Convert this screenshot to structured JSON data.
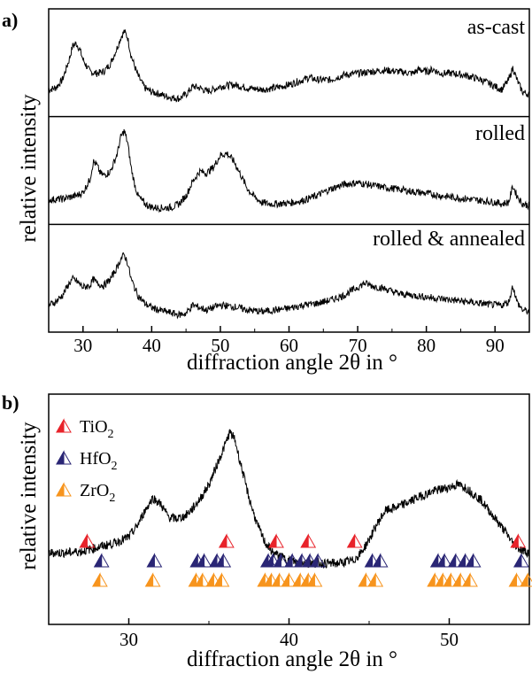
{
  "chart_data": [
    {
      "panel_label": "a)",
      "type": "line",
      "xlabel": "diffraction angle 2θ in °",
      "ylabel": "relative intensity",
      "xlim": [
        25,
        95
      ],
      "xticks": [
        30,
        40,
        50,
        60,
        70,
        80,
        90
      ],
      "stacked_panels": [
        {
          "label": "as-cast",
          "x": [
            25,
            26,
            27,
            28,
            28.5,
            29,
            29.5,
            30,
            31,
            32,
            33,
            34,
            35,
            35.5,
            36,
            36.5,
            37,
            38,
            39,
            40,
            41,
            42,
            43,
            44,
            45,
            46,
            47,
            48,
            49,
            50,
            52,
            54,
            56,
            58,
            60,
            62,
            63,
            64,
            66,
            68,
            70,
            72,
            74,
            76,
            78,
            79,
            80,
            81,
            82,
            84,
            86,
            88,
            90,
            91,
            92,
            92.6,
            93.2,
            94,
            95
          ],
          "y": [
            0.18,
            0.2,
            0.3,
            0.55,
            0.72,
            0.75,
            0.68,
            0.55,
            0.4,
            0.38,
            0.4,
            0.5,
            0.7,
            0.82,
            0.9,
            0.82,
            0.6,
            0.35,
            0.2,
            0.15,
            0.13,
            0.1,
            0.08,
            0.07,
            0.12,
            0.22,
            0.2,
            0.16,
            0.18,
            0.22,
            0.24,
            0.2,
            0.18,
            0.2,
            0.24,
            0.3,
            0.33,
            0.3,
            0.3,
            0.36,
            0.38,
            0.4,
            0.42,
            0.4,
            0.38,
            0.43,
            0.4,
            0.43,
            0.38,
            0.38,
            0.35,
            0.3,
            0.22,
            0.18,
            0.3,
            0.45,
            0.3,
            0.15,
            0.12
          ]
        },
        {
          "label": "rolled",
          "x": [
            25,
            27,
            29,
            30,
            31,
            31.5,
            32,
            32.5,
            33,
            34,
            35,
            35.5,
            36,
            36.5,
            37,
            37.5,
            38,
            39,
            40,
            41,
            42,
            43,
            44,
            45,
            46,
            47,
            48,
            49,
            50,
            51,
            52,
            53,
            54,
            55,
            56,
            57,
            58,
            60,
            62,
            64,
            66,
            68,
            70,
            72,
            74,
            76,
            78,
            80,
            82,
            84,
            86,
            88,
            90,
            91,
            92,
            92.6,
            93.2,
            94,
            95
          ],
          "y": [
            0.15,
            0.16,
            0.2,
            0.24,
            0.4,
            0.62,
            0.58,
            0.48,
            0.45,
            0.5,
            0.72,
            0.92,
            1.0,
            0.85,
            0.55,
            0.35,
            0.2,
            0.1,
            0.06,
            0.05,
            0.05,
            0.06,
            0.1,
            0.2,
            0.38,
            0.5,
            0.48,
            0.55,
            0.7,
            0.72,
            0.62,
            0.45,
            0.28,
            0.18,
            0.12,
            0.1,
            0.1,
            0.11,
            0.14,
            0.2,
            0.28,
            0.34,
            0.36,
            0.33,
            0.3,
            0.28,
            0.25,
            0.23,
            0.2,
            0.18,
            0.16,
            0.14,
            0.12,
            0.1,
            0.12,
            0.32,
            0.2,
            0.1,
            0.08
          ]
        },
        {
          "label": "rolled & annealed",
          "x": [
            25,
            26,
            27,
            28,
            28.5,
            29,
            30,
            31,
            31.5,
            32,
            33,
            34,
            35,
            35.5,
            36,
            36.5,
            37,
            38,
            39,
            40,
            41,
            42,
            43,
            44,
            45,
            46,
            47,
            48,
            49,
            50,
            52,
            54,
            56,
            58,
            60,
            62,
            64,
            66,
            68,
            70,
            71,
            72,
            74,
            76,
            78,
            80,
            82,
            84,
            86,
            88,
            90,
            91,
            92,
            92.6,
            93.2,
            94,
            95
          ],
          "y": [
            0.18,
            0.22,
            0.3,
            0.45,
            0.5,
            0.48,
            0.4,
            0.42,
            0.5,
            0.45,
            0.42,
            0.5,
            0.65,
            0.75,
            0.8,
            0.7,
            0.5,
            0.3,
            0.2,
            0.15,
            0.12,
            0.1,
            0.08,
            0.06,
            0.08,
            0.18,
            0.15,
            0.12,
            0.15,
            0.18,
            0.16,
            0.12,
            0.1,
            0.12,
            0.14,
            0.18,
            0.2,
            0.24,
            0.3,
            0.4,
            0.45,
            0.42,
            0.38,
            0.32,
            0.3,
            0.28,
            0.26,
            0.24,
            0.22,
            0.2,
            0.18,
            0.18,
            0.22,
            0.42,
            0.22,
            0.12,
            0.1
          ]
        }
      ]
    },
    {
      "panel_label": "b)",
      "type": "line",
      "xlabel": "diffraction angle 2θ in °",
      "ylabel": "relative intensity",
      "xlim": [
        25,
        55
      ],
      "xticks": [
        30,
        40,
        50
      ],
      "x": [
        25,
        26,
        27,
        28,
        29,
        30,
        30.5,
        31,
        31.5,
        32,
        32.5,
        33,
        33.5,
        34,
        34.5,
        35,
        35.5,
        36,
        36.3,
        36.6,
        37,
        37.5,
        38,
        38.5,
        39,
        40,
        41,
        42,
        43,
        44,
        44.5,
        45,
        45.5,
        46,
        47,
        48,
        49,
        50,
        50.5,
        51,
        52,
        53,
        53.5,
        54,
        54.5,
        55
      ],
      "y": [
        0.08,
        0.08,
        0.09,
        0.12,
        0.15,
        0.2,
        0.28,
        0.4,
        0.5,
        0.45,
        0.35,
        0.34,
        0.36,
        0.42,
        0.5,
        0.6,
        0.75,
        0.9,
        1.0,
        0.95,
        0.75,
        0.5,
        0.3,
        0.16,
        0.08,
        0.02,
        0.0,
        0.0,
        0.0,
        0.02,
        0.08,
        0.18,
        0.3,
        0.4,
        0.44,
        0.5,
        0.55,
        0.58,
        0.6,
        0.58,
        0.48,
        0.32,
        0.24,
        0.15,
        0.1,
        0.08
      ],
      "legend": [
        {
          "label": "TiO",
          "subscript": "2",
          "color": "#e8232a",
          "marker": "triangle"
        },
        {
          "label": "HfO",
          "subscript": "2",
          "color": "#2a2675",
          "marker": "triangle"
        },
        {
          "label": "ZrO",
          "subscript": "2",
          "color": "#f7941d",
          "marker": "triangle"
        }
      ],
      "reflection_markers": {
        "TiO2": [
          27.4,
          36.1,
          39.2,
          41.2,
          44.1,
          54.3
        ],
        "HfO2": [
          28.3,
          31.6,
          34.3,
          34.7,
          35.5,
          35.9,
          38.7,
          39.0,
          39.5,
          40.2,
          40.8,
          41.3,
          41.8,
          45.2,
          45.7,
          49.3,
          49.7,
          50.4,
          51.0,
          51.5,
          54.5
        ],
        "ZrO2": [
          28.2,
          31.5,
          34.2,
          34.6,
          35.3,
          35.8,
          38.5,
          38.9,
          39.4,
          40.0,
          40.7,
          41.2,
          41.6,
          44.8,
          45.4,
          49.1,
          49.6,
          50.1,
          50.7,
          51.3,
          54.2,
          54.9
        ]
      }
    }
  ]
}
